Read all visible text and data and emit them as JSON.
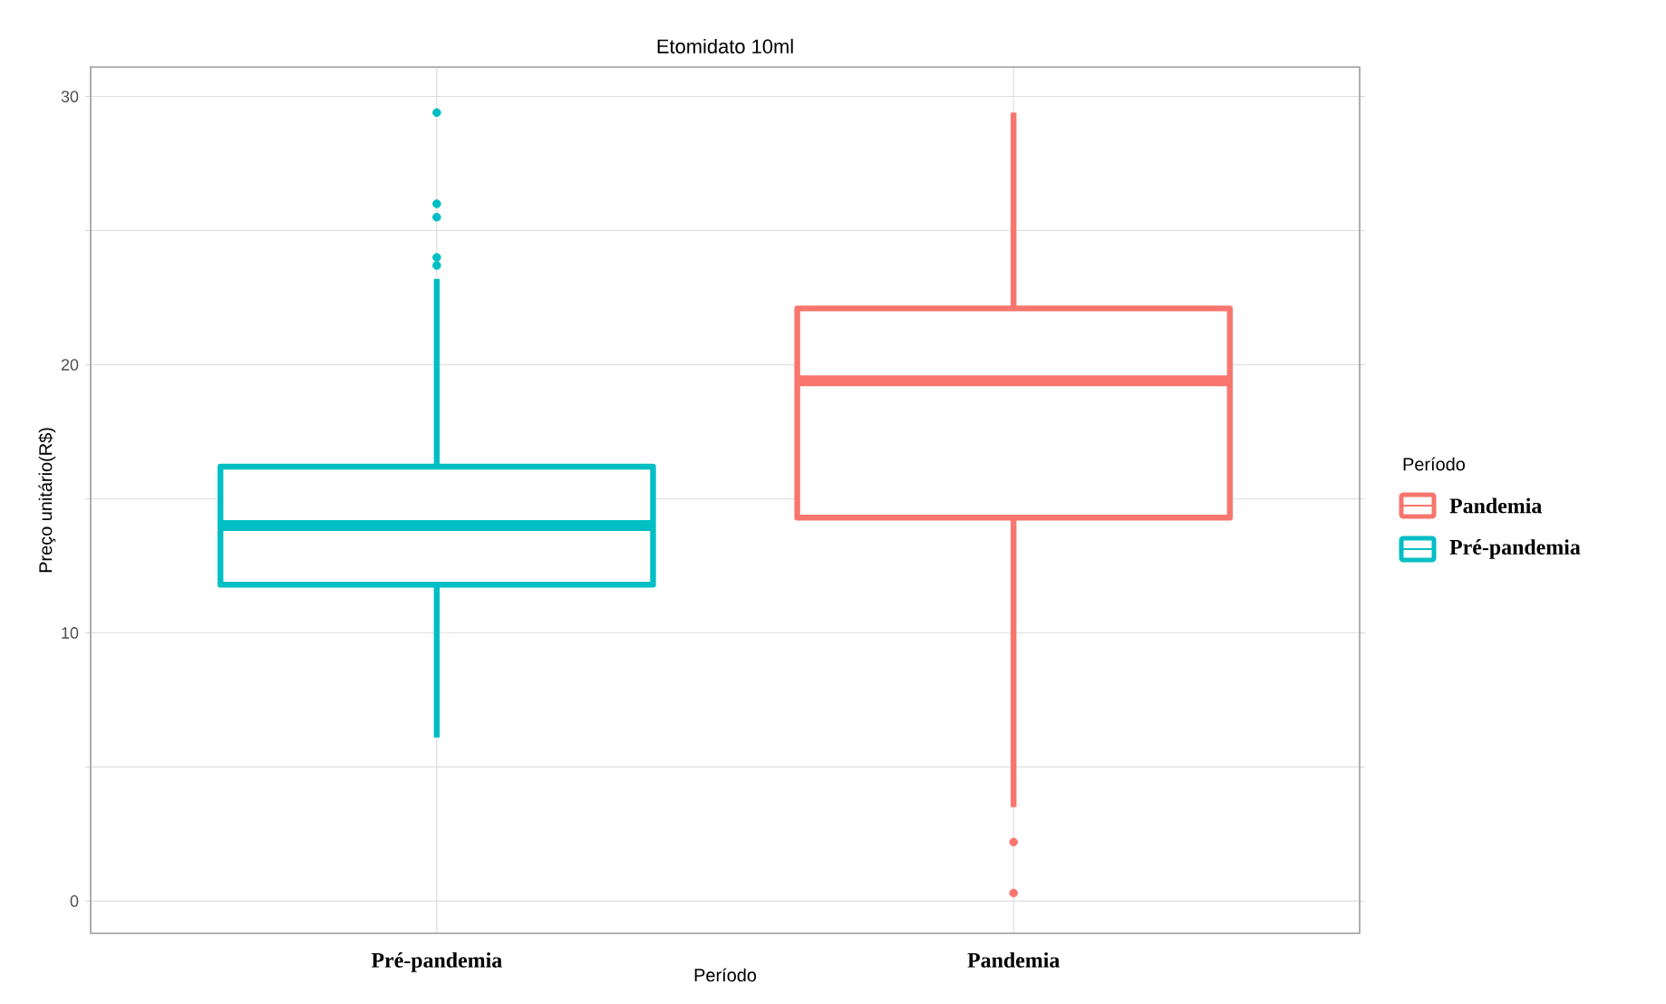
{
  "chart_data": {
    "type": "box",
    "title": "Etomidato 10ml",
    "xlabel": "Período",
    "ylabel": "Preço unitário(R$)",
    "legend_title": "Período",
    "categories": [
      "**Pré-pandemia**",
      "**Pandemia**"
    ],
    "series": [
      {
        "name": "**Pandemia**",
        "color": "#f8766d",
        "boxes": [
          null,
          {
            "low": 3.5,
            "q1": 14.3,
            "median": 19.4,
            "q3": 22.1,
            "high": 29.4,
            "outliers": [
              2.2,
              0.3
            ]
          }
        ]
      },
      {
        "name": "**Pré-pandemia**",
        "color": "#00bfc4",
        "boxes": [
          {
            "low": 6.1,
            "q1": 11.8,
            "median": 14.0,
            "q3": 16.2,
            "high": 23.2,
            "outliers": [
              23.7,
              24.0,
              25.5,
              26.0,
              29.4
            ]
          },
          null
        ]
      }
    ],
    "ylim": [
      -1.2,
      31.1
    ],
    "yticks": [
      0,
      {
        "value": 5,
        "label": null
      },
      10,
      {
        "value": 15,
        "label": null
      },
      20,
      {
        "value": 25,
        "label": null
      },
      30
    ],
    "grid": true,
    "legend": "right"
  }
}
